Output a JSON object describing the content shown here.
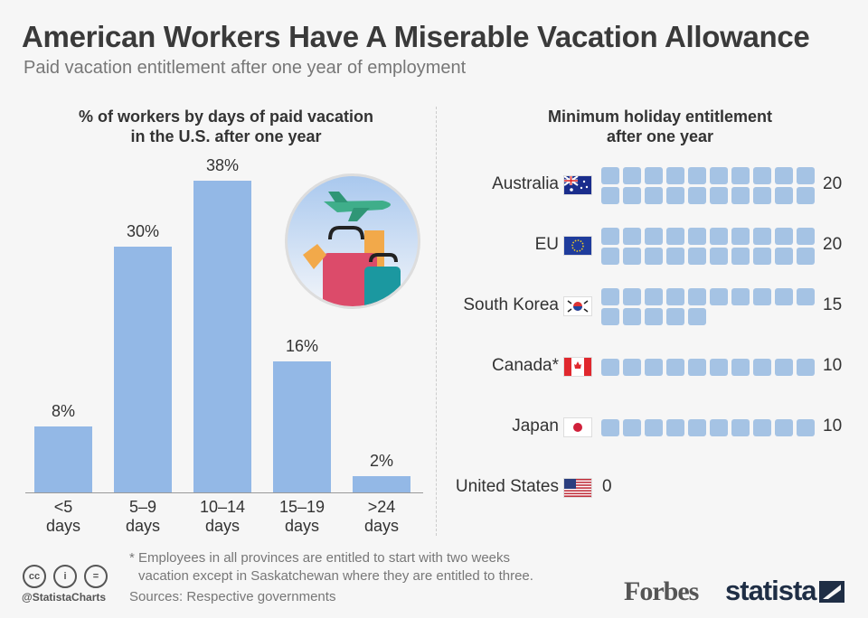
{
  "header": {
    "title": "American Workers Have A Miserable Vacation Allowance",
    "subtitle": "Paid vacation entitlement after one year of employment"
  },
  "chart_data": [
    {
      "type": "bar",
      "title": "% of workers by days of paid vacation in the U.S. after one year",
      "title_lines": [
        "% of workers by days of paid vacation",
        "in the U.S. after one year"
      ],
      "categories": [
        "<5 days",
        "5–9 days",
        "10–14 days",
        "15–19 days",
        ">24 days"
      ],
      "category_lines": [
        [
          "<5",
          "days"
        ],
        [
          "5–9",
          "days"
        ],
        [
          "10–14",
          "days"
        ],
        [
          "15–19",
          "days"
        ],
        [
          ">24",
          "days"
        ]
      ],
      "values": [
        8,
        30,
        38,
        16,
        2
      ],
      "labels": [
        "8%",
        "30%",
        "38%",
        "16%",
        "2%"
      ],
      "ylim": [
        0,
        40
      ],
      "color": "#93b8e6"
    },
    {
      "type": "pictogram",
      "title": "Minimum holiday entitlement after one year",
      "title_lines": [
        "Minimum holiday entitlement",
        "after one year"
      ],
      "categories": [
        "Australia",
        "EU",
        "South Korea",
        "Canada*",
        "Japan",
        "United States"
      ],
      "values": [
        20,
        20,
        15,
        10,
        10,
        0
      ],
      "unit": "days",
      "color": "#a5c3e4"
    }
  ],
  "footer": {
    "note_lines": [
      "* Employees in all provinces are entitled to start with two weeks",
      "vacation except in Saskatchewan where they are entitled to three."
    ],
    "sources": "Sources: Respective governments",
    "handle": "@StatistaCharts",
    "logo1": "Forbes",
    "logo2": "statista"
  }
}
